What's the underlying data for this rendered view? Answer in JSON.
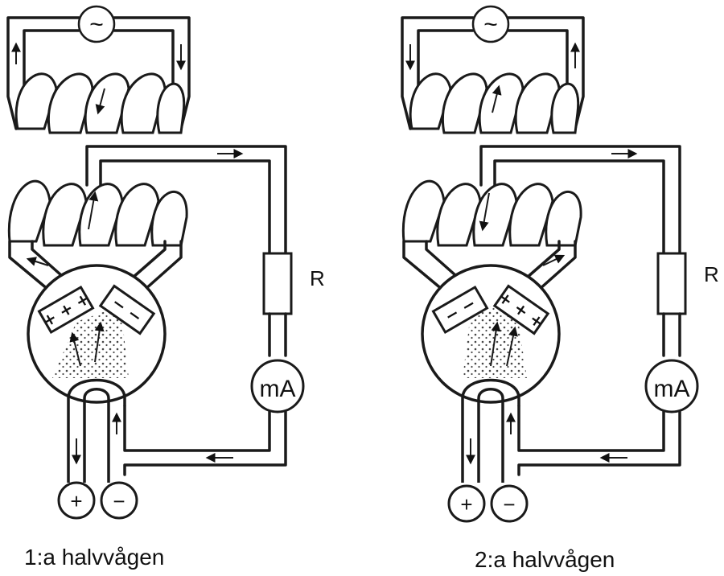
{
  "panels": [
    {
      "caption": "1:a  halvvågen",
      "resistor_label": "R",
      "meter_label": "mA",
      "source_symbol": "~",
      "terminal_plus": "+",
      "terminal_minus": "−",
      "plate_left_signs": "+ + +",
      "plate_right_signs": "− −"
    },
    {
      "caption": "2:a halvvågen",
      "resistor_label": "R",
      "meter_label": "mA",
      "source_symbol": "~",
      "terminal_plus": "+",
      "terminal_minus": "−",
      "plate_left_signs": "− −",
      "plate_right_signs": "+ + +"
    }
  ]
}
